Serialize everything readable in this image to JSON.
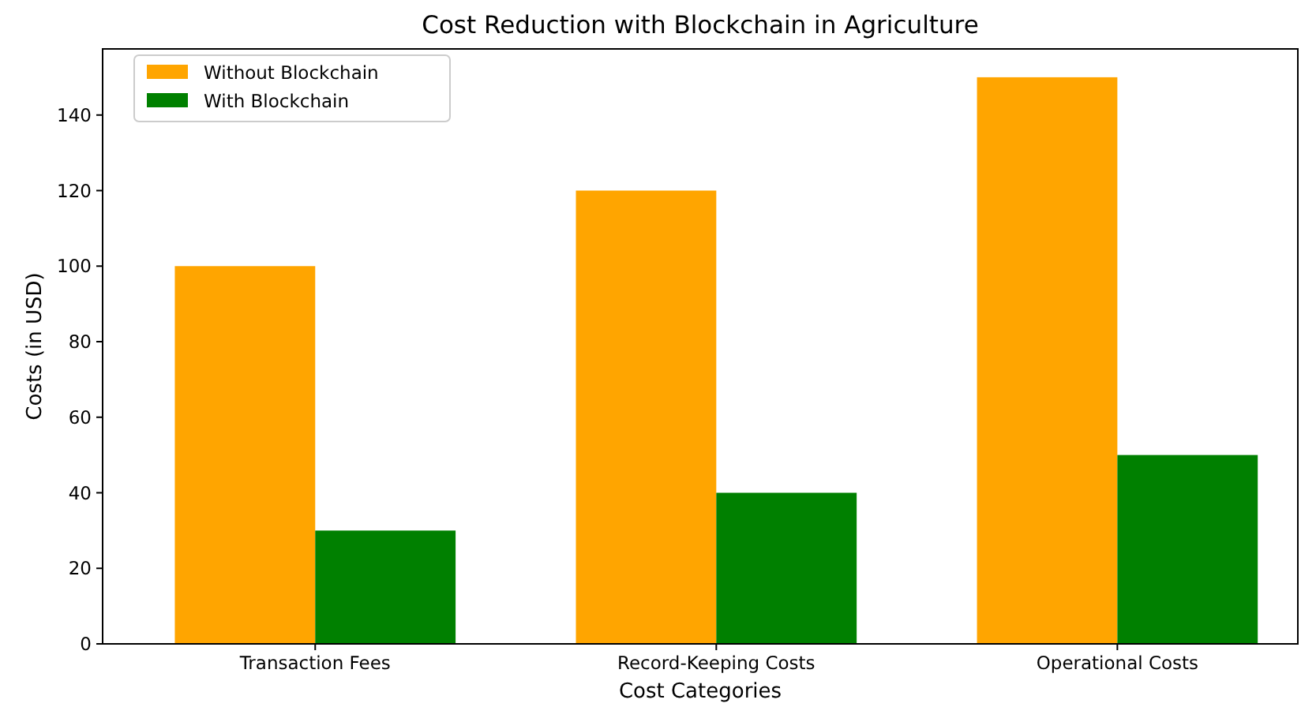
{
  "chart_data": {
    "type": "bar",
    "title": "Cost Reduction with Blockchain in Agriculture",
    "xlabel": "Cost Categories",
    "ylabel": "Costs (in USD)",
    "categories": [
      "Transaction Fees",
      "Record-Keeping Costs",
      "Operational Costs"
    ],
    "series": [
      {
        "name": "Without Blockchain",
        "color": "#ffa500",
        "values": [
          100,
          120,
          150
        ]
      },
      {
        "name": "With Blockchain",
        "color": "#008000",
        "values": [
          30,
          40,
          50
        ]
      }
    ],
    "ylim": [
      0,
      157.5
    ],
    "yticks": [
      0,
      20,
      40,
      60,
      80,
      100,
      120,
      140
    ],
    "grid": false,
    "legend": "top left"
  }
}
